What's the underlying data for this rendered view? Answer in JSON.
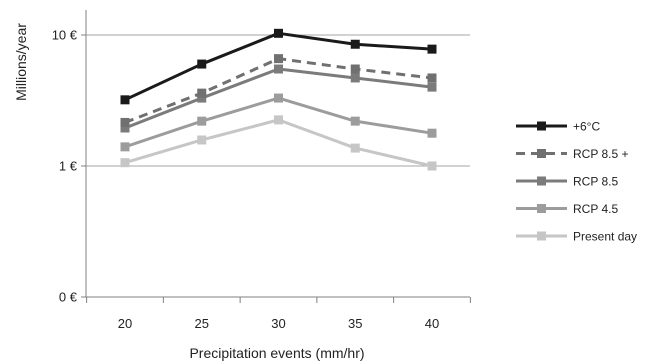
{
  "chart_data": {
    "type": "line",
    "x": [
      20,
      25,
      30,
      35,
      40
    ],
    "xlabel": "Precipitation events (mm/hr)",
    "ylabel": "Millions/year",
    "yscale": "log",
    "ylim": [
      0.1,
      10
    ],
    "ytick_values": [
      0.1,
      1,
      10
    ],
    "ytick_labels": [
      "0 €",
      "1 €",
      "10 €"
    ],
    "grid": "horizontal",
    "legend_position": "right",
    "series": [
      {
        "name": "+6°C",
        "values": [
          3.2,
          6.0,
          10.3,
          8.5,
          7.8
        ],
        "color": "#1a1a1a",
        "dashed": false
      },
      {
        "name": "RCP 8.5 +",
        "values": [
          2.15,
          3.6,
          6.6,
          5.5,
          4.7
        ],
        "color": "#707070",
        "dashed": true
      },
      {
        "name": "RCP 8.5",
        "values": [
          1.95,
          3.3,
          5.5,
          4.7,
          4.0
        ],
        "color": "#7b7b7b",
        "dashed": false
      },
      {
        "name": "RCP 4.5",
        "values": [
          1.4,
          2.2,
          3.3,
          2.2,
          1.78
        ],
        "color": "#9c9c9c",
        "dashed": false
      },
      {
        "name": "Present day",
        "values": [
          1.06,
          1.58,
          2.25,
          1.37,
          1.0
        ],
        "color": "#c6c6c6",
        "dashed": false
      }
    ]
  }
}
